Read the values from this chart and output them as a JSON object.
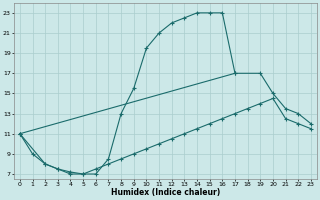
{
  "xlabel": "Humidex (Indice chaleur)",
  "bg_color": "#cce8e8",
  "grid_color": "#aacece",
  "line_color": "#1a6b6b",
  "xlim": [
    -0.5,
    23.5
  ],
  "ylim": [
    6.5,
    24.0
  ],
  "xticks": [
    0,
    1,
    2,
    3,
    4,
    5,
    6,
    7,
    8,
    9,
    10,
    11,
    12,
    13,
    14,
    15,
    16,
    17,
    18,
    19,
    20,
    21,
    22,
    23
  ],
  "yticks": [
    7,
    9,
    11,
    13,
    15,
    17,
    19,
    21,
    23
  ],
  "line1_x": [
    0,
    1,
    2,
    3,
    4,
    5,
    6,
    7,
    8,
    9,
    10,
    11,
    12,
    13,
    14,
    15,
    16,
    17
  ],
  "line1_y": [
    11,
    9,
    8,
    7.5,
    7,
    7,
    7,
    8.5,
    13,
    15.5,
    19.5,
    21,
    22,
    22.5,
    23,
    23,
    23,
    17
  ],
  "line2_x": [
    0,
    17,
    19,
    20,
    21,
    22,
    23
  ],
  "line2_y": [
    11,
    17,
    17,
    15,
    13.5,
    13,
    12
  ],
  "line3_x": [
    0,
    2,
    3,
    4,
    5,
    6,
    7,
    8,
    9,
    10,
    11,
    12,
    13,
    14,
    15,
    16,
    17,
    18,
    19,
    20,
    21,
    22,
    23
  ],
  "line3_y": [
    11,
    8,
    7.5,
    7.2,
    7.0,
    7.5,
    8.0,
    8.5,
    9.0,
    9.5,
    10.0,
    10.5,
    11.0,
    11.5,
    12.0,
    12.5,
    13.0,
    13.5,
    14.0,
    14.5,
    12.5,
    12.0,
    11.5
  ]
}
